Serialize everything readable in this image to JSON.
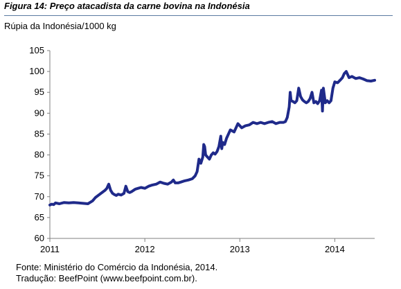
{
  "figure": {
    "title": "Figura 14: Preço atacadista da carne bovina na Indonésia",
    "unit_label": "Rúpia da Indonésia/1000 kg",
    "source_line": "Fonte: Ministério do Comércio da Indonésia, 2014.",
    "translation_line": "Tradução: BeefPoint (www.beefpoint.com.br)."
  },
  "colors": {
    "series_line": "#1f2a8a",
    "axis": "#7f7f7f",
    "title_rule": "#5a7aa0"
  },
  "chart_data": {
    "type": "line",
    "title": "",
    "xlabel": "",
    "ylabel": "Rúpia da Indonésia/1000 kg",
    "xlim": [
      2011.0,
      2014.42
    ],
    "ylim": [
      60,
      105
    ],
    "x_ticks": [
      2011,
      2012,
      2013,
      2014
    ],
    "x_tick_labels": [
      "2011",
      "2012",
      "2013",
      "2014"
    ],
    "y_ticks": [
      60,
      65,
      70,
      75,
      80,
      85,
      90,
      95,
      100,
      105
    ],
    "y_tick_labels": [
      "60",
      "65",
      "70",
      "75",
      "80",
      "85",
      "90",
      "95",
      "100",
      "105"
    ],
    "grid": false,
    "legend": "none",
    "series": [
      {
        "x": [
          2011.0,
          2011.02,
          2011.04,
          2011.06,
          2011.1,
          2011.15,
          2011.2,
          2011.25,
          2011.3,
          2011.35,
          2011.4,
          2011.45,
          2011.48,
          2011.52,
          2011.55,
          2011.58,
          2011.6,
          2011.62,
          2011.64,
          2011.66,
          2011.68,
          2011.7,
          2011.72,
          2011.75,
          2011.78,
          2011.8,
          2011.82,
          2011.84,
          2011.86,
          2011.88,
          2011.9,
          2011.93,
          2011.96,
          2012.0,
          2012.04,
          2012.08,
          2012.12,
          2012.16,
          2012.2,
          2012.24,
          2012.28,
          2012.3,
          2012.32,
          2012.35,
          2012.38,
          2012.42,
          2012.46,
          2012.5,
          2012.53,
          2012.55,
          2012.57,
          2012.59,
          2012.61,
          2012.62,
          2012.63,
          2012.64,
          2012.66,
          2012.68,
          2012.7,
          2012.72,
          2012.74,
          2012.76,
          2012.78,
          2012.8,
          2012.81,
          2012.82,
          2012.84,
          2012.86,
          2012.9,
          2012.94,
          2012.98,
          2013.02,
          2013.06,
          2013.1,
          2013.14,
          2013.18,
          2013.22,
          2013.26,
          2013.3,
          2013.34,
          2013.38,
          2013.42,
          2013.46,
          2013.48,
          2013.5,
          2013.52,
          2013.53,
          2013.54,
          2013.56,
          2013.58,
          2013.6,
          2013.62,
          2013.64,
          2013.66,
          2013.68,
          2013.7,
          2013.72,
          2013.74,
          2013.76,
          2013.78,
          2013.8,
          2013.82,
          2013.84,
          2013.86,
          2013.87,
          2013.88,
          2013.9,
          2013.92,
          2013.94,
          2013.96,
          2013.98,
          2014.0,
          2014.03,
          2014.06,
          2014.08,
          2014.1,
          2014.12,
          2014.15,
          2014.18,
          2014.22,
          2014.26,
          2014.3,
          2014.34,
          2014.38,
          2014.42
        ],
        "values": [
          68.0,
          68.2,
          68.1,
          68.5,
          68.3,
          68.6,
          68.5,
          68.6,
          68.5,
          68.4,
          68.3,
          69.0,
          69.8,
          70.5,
          71.0,
          71.5,
          72.0,
          73.0,
          71.5,
          70.8,
          70.5,
          70.3,
          70.6,
          70.4,
          70.8,
          72.5,
          71.2,
          71.0,
          71.2,
          71.5,
          71.8,
          72.0,
          72.2,
          72.0,
          72.5,
          72.8,
          73.0,
          73.5,
          73.2,
          73.0,
          73.5,
          74.0,
          73.3,
          73.3,
          73.5,
          73.8,
          74.0,
          74.3,
          75.0,
          76.0,
          79.0,
          78.0,
          79.5,
          82.5,
          82.0,
          80.0,
          79.5,
          79.0,
          80.0,
          80.5,
          80.2,
          80.8,
          82.0,
          84.5,
          81.5,
          83.0,
          82.5,
          84.0,
          86.0,
          85.5,
          87.5,
          86.5,
          87.0,
          87.2,
          87.8,
          87.5,
          87.8,
          87.5,
          87.8,
          88.0,
          87.5,
          87.8,
          87.8,
          88.0,
          89.0,
          91.5,
          95.0,
          93.0,
          92.8,
          92.5,
          93.0,
          96.0,
          94.0,
          93.2,
          92.8,
          92.5,
          92.8,
          93.5,
          95.0,
          92.5,
          92.8,
          92.3,
          93.0,
          95.5,
          90.5,
          96.0,
          92.5,
          93.0,
          92.5,
          93.0,
          96.0,
          97.5,
          97.3,
          98.0,
          98.5,
          99.5,
          100.0,
          98.5,
          98.8,
          98.3,
          98.5,
          98.2,
          97.8,
          97.7,
          97.9
        ]
      }
    ]
  }
}
